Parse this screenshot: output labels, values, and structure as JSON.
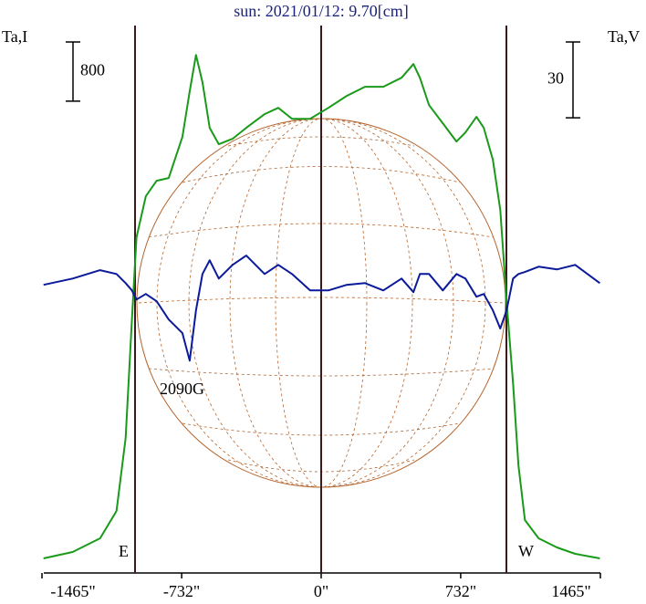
{
  "chart_data": {
    "type": "line",
    "title": "sun: 2021/01/12: 9.70[cm]",
    "ylabel": "Ta,I",
    "y2label": "Ta,V",
    "xlim": [
      -1465,
      1465
    ],
    "xticks": [
      {
        "value": -1465,
        "label": "-1465\""
      },
      {
        "value": -732,
        "label": "-732\""
      },
      {
        "value": 0,
        "label": "0\""
      },
      {
        "value": 732,
        "label": "732\""
      },
      {
        "value": 1465,
        "label": "1465\""
      }
    ],
    "ylim": [
      0,
      7400
    ],
    "y2lim": [
      -114,
      102.6
    ],
    "scale_bars": [
      {
        "value": 800,
        "axis": "y"
      },
      {
        "value": 30,
        "axis": "y2"
      }
    ],
    "annotations": [
      "2090G",
      "E",
      "W"
    ],
    "x": [
      -1457,
      -1304,
      -1160,
      -1074,
      -1026,
      -993,
      -969,
      -920,
      -863,
      -800,
      -728,
      -690,
      -657,
      -623,
      -585,
      -537,
      -465,
      -393,
      -297,
      -225,
      -153,
      -58,
      38,
      134,
      230,
      326,
      422,
      484,
      518,
      566,
      638,
      710,
      757,
      815,
      853,
      901,
      940,
      973,
      1007,
      1035,
      1069,
      1141,
      1237,
      1333,
      1462
    ],
    "series": [
      {
        "color": "#1a9a1a",
        "axis": "y",
        "values": [
          197,
          284,
          469,
          839,
          1825,
          3428,
          4537,
          5092,
          5302,
          5339,
          5894,
          6510,
          7003,
          6634,
          6017,
          5795,
          5869,
          6017,
          6202,
          6288,
          6140,
          6140,
          6288,
          6449,
          6572,
          6572,
          6695,
          6880,
          6695,
          6325,
          6079,
          5832,
          5955,
          6165,
          6017,
          5585,
          4907,
          3674,
          2565,
          1455,
          715,
          469,
          345,
          259,
          197
        ]
      },
      {
        "color": "#0a1a9a",
        "axis": "y2",
        "values": [
          0,
          2.5,
          5.8,
          4.3,
          0.7,
          -2.2,
          -5.8,
          -3.6,
          -6.5,
          -13.7,
          -19.1,
          -30.0,
          -10.1,
          4.3,
          9.7,
          2.5,
          7.9,
          11.6,
          4.3,
          7.9,
          4.3,
          -2.2,
          -2.2,
          0,
          0.7,
          -2.2,
          2.5,
          -2.9,
          4.3,
          4.3,
          -2.2,
          4.3,
          2.5,
          -4.7,
          -3.6,
          -10.1,
          -17.3,
          -10.1,
          2.5,
          4.3,
          5.1,
          7.2,
          6.1,
          7.9,
          0.7
        ]
      }
    ]
  }
}
